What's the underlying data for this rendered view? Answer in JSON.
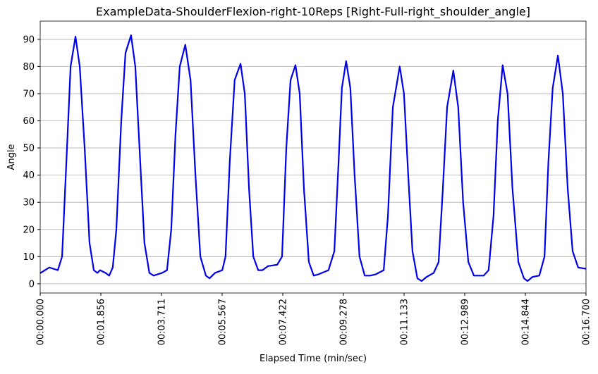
{
  "chart_data": {
    "type": "line",
    "title": "ExampleData-ShoulderFlexion-right-10Reps [Right-Full-right_shoulder_angle]",
    "x_label": "Elapsed Time (min/sec)",
    "y_label": "Angle",
    "x": [
      0,
      0.28,
      0.54,
      0.67,
      0.82,
      0.93,
      1.08,
      1.21,
      1.36,
      1.51,
      1.64,
      1.75,
      1.83,
      2.0,
      2.11,
      2.22,
      2.33,
      2.48,
      2.61,
      2.78,
      2.91,
      3.06,
      3.19,
      3.34,
      3.47,
      3.73,
      3.88,
      4.01,
      4.14,
      4.27,
      4.44,
      4.6,
      4.75,
      4.9,
      5.07,
      5.18,
      5.35,
      5.57,
      5.67,
      5.8,
      5.95,
      6.13,
      6.26,
      6.39,
      6.52,
      6.67,
      6.8,
      6.97,
      7.25,
      7.4,
      7.53,
      7.66,
      7.81,
      7.94,
      8.07,
      8.22,
      8.37,
      8.52,
      8.82,
      9.0,
      9.13,
      9.23,
      9.36,
      9.49,
      9.62,
      9.77,
      9.93,
      10.1,
      10.27,
      10.51,
      10.64,
      10.79,
      11.0,
      11.13,
      11.26,
      11.39,
      11.54,
      11.67,
      11.82,
      12.04,
      12.19,
      12.32,
      12.45,
      12.64,
      12.79,
      12.94,
      13.1,
      13.27,
      13.57,
      13.72,
      13.87,
      14.0,
      14.15,
      14.3,
      14.45,
      14.63,
      14.8,
      14.91,
      15.06,
      15.27,
      15.43,
      15.55,
      15.68,
      15.84,
      15.99,
      16.14,
      16.29,
      16.46,
      16.7
    ],
    "series": [
      {
        "name": "right_shoulder_angle",
        "color": "#0000ee",
        "values": [
          3.9,
          6,
          5,
          10,
          50,
          80,
          91,
          80,
          50,
          15,
          5,
          4,
          5,
          4,
          3,
          6,
          20,
          60,
          85,
          91.5,
          80,
          45,
          15,
          4,
          3,
          4,
          5,
          20,
          55,
          80,
          88,
          75,
          40,
          10,
          3,
          2,
          4,
          5,
          10,
          45,
          75,
          81,
          70,
          35,
          10,
          5,
          5,
          6.5,
          7,
          10,
          50,
          75,
          80.5,
          70,
          35,
          8,
          3,
          3.5,
          5,
          12,
          45,
          72,
          82,
          72,
          40,
          10,
          3,
          3,
          3.5,
          5,
          25,
          65,
          80,
          70,
          40,
          12,
          2,
          1,
          2.5,
          4,
          8,
          35,
          65,
          78.5,
          65,
          30,
          8,
          3,
          3,
          5,
          25,
          60,
          80.5,
          70,
          35,
          8,
          2,
          1,
          2.5,
          3,
          10,
          45,
          72,
          84,
          70,
          35,
          12,
          6,
          5.5
        ]
      }
    ],
    "xlim": [
      0,
      16.7
    ],
    "ylim": [
      -3.4,
      96.7
    ],
    "xticks": [
      {
        "value": 0,
        "label": "00:00.000"
      },
      {
        "value": 1.856,
        "label": "00:01.856"
      },
      {
        "value": 3.711,
        "label": "00:03.711"
      },
      {
        "value": 5.567,
        "label": "00:05.567"
      },
      {
        "value": 7.422,
        "label": "00:07.422"
      },
      {
        "value": 9.278,
        "label": "00:09.278"
      },
      {
        "value": 11.133,
        "label": "00:11.133"
      },
      {
        "value": 12.989,
        "label": "00:12.989"
      },
      {
        "value": 14.844,
        "label": "00:14.844"
      },
      {
        "value": 16.7,
        "label": "00:16.700"
      }
    ],
    "yticks": [
      0,
      10,
      20,
      30,
      40,
      50,
      60,
      70,
      80,
      90
    ],
    "grid": "y"
  }
}
